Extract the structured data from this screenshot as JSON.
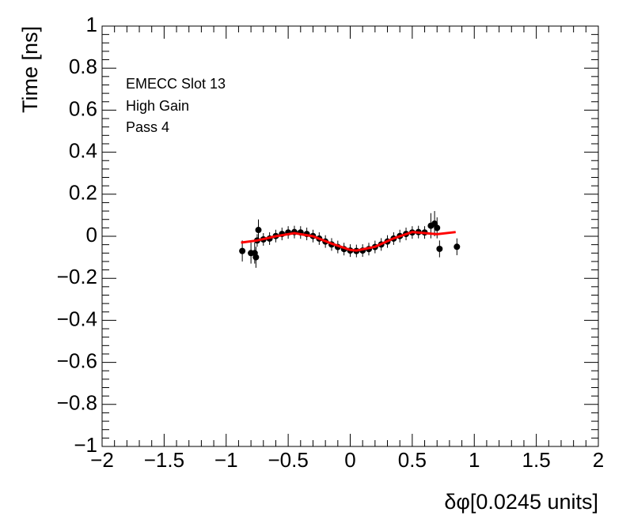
{
  "chart_data": {
    "type": "scatter",
    "xlabel": "δφ[0.0245 units]",
    "ylabel": "Time [ns]",
    "annotations": [
      "EMECC Slot 13",
      "High Gain",
      "Pass 4"
    ],
    "xlim": [
      -2,
      2
    ],
    "ylim": [
      -1,
      1
    ],
    "xticks": [
      {
        "value": -2,
        "label": "−2"
      },
      {
        "value": -1.5,
        "label": "−1.5"
      },
      {
        "value": -1,
        "label": "−1"
      },
      {
        "value": -0.5,
        "label": "−0.5"
      },
      0,
      0.5,
      1,
      1.5,
      2
    ],
    "yticks": [
      {
        "value": -1,
        "label": "−1"
      },
      {
        "value": -0.8,
        "label": "−0.8"
      },
      {
        "value": -0.6,
        "label": "−0.6"
      },
      {
        "value": -0.4,
        "label": "−0.4"
      },
      {
        "value": -0.2,
        "label": "−0.2"
      },
      0,
      0.2,
      0.4,
      0.6,
      0.8,
      1
    ],
    "series": [
      {
        "color": "#000000",
        "x": [
          -0.87,
          -0.8,
          -0.77,
          -0.76,
          -0.74,
          -0.75,
          -0.7,
          -0.65,
          -0.6,
          -0.55,
          -0.5,
          -0.45,
          -0.4,
          -0.35,
          -0.3,
          -0.25,
          -0.2,
          -0.15,
          -0.1,
          -0.05,
          0,
          0.05,
          0.1,
          0.15,
          0.2,
          0.25,
          0.3,
          0.35,
          0.4,
          0.45,
          0.5,
          0.55,
          0.6,
          0.65,
          0.68,
          0.7,
          0.72,
          0.86
        ],
        "values": [
          -0.07,
          -0.08,
          -0.08,
          -0.1,
          0.03,
          -0.02,
          -0.015,
          -0.011,
          0.001,
          0.011,
          0.018,
          0.02,
          0.018,
          0.011,
          0.001,
          -0.011,
          -0.025,
          -0.039,
          -0.051,
          -0.061,
          -0.068,
          -0.07,
          -0.068,
          -0.061,
          -0.051,
          -0.039,
          -0.025,
          -0.011,
          0.001,
          0.011,
          0.018,
          0.02,
          0.018,
          0.05,
          0.06,
          0.04,
          -0.06,
          -0.05
        ],
        "errors": [
          0.05,
          0.05,
          0.05,
          0.05,
          0.05,
          0.03,
          0.03,
          0.03,
          0.03,
          0.03,
          0.03,
          0.03,
          0.03,
          0.03,
          0.03,
          0.03,
          0.03,
          0.03,
          0.03,
          0.03,
          0.03,
          0.03,
          0.03,
          0.03,
          0.03,
          0.03,
          0.03,
          0.03,
          0.03,
          0.03,
          0.03,
          0.03,
          0.03,
          0.06,
          0.06,
          0.05,
          0.04,
          0.04
        ]
      }
    ],
    "fit": {
      "color": "#ff0000",
      "x": [
        -0.88,
        -0.75,
        -0.6,
        -0.45,
        -0.3,
        -0.15,
        0,
        0.05,
        0.2,
        0.35,
        0.5,
        0.6,
        0.7,
        0.85
      ],
      "values": [
        -0.03,
        -0.02,
        0.0,
        0.015,
        0.0,
        -0.035,
        -0.065,
        -0.068,
        -0.05,
        -0.01,
        0.02,
        0.015,
        0.01,
        0.02
      ]
    }
  }
}
